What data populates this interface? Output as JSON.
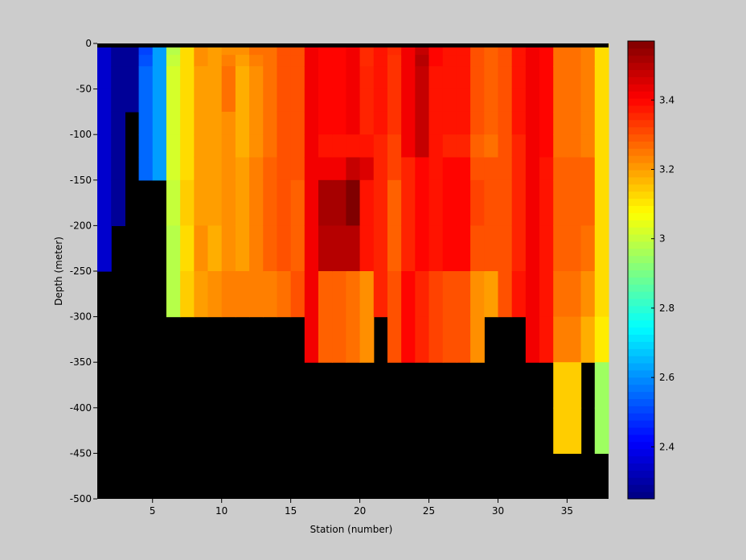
{
  "chart_data": {
    "type": "heatmap",
    "title": "",
    "xlabel": "Station (number)",
    "ylabel": "Depth (meter)",
    "xlim": [
      1,
      38
    ],
    "ylim": [
      -500,
      0
    ],
    "x_ticks": [
      5,
      10,
      15,
      20,
      25,
      30,
      35
    ],
    "y_ticks": [
      0,
      -50,
      -100,
      -150,
      -200,
      -250,
      -300,
      -350,
      -400,
      -450,
      -500
    ],
    "colorbar": {
      "range": [
        2.25,
        3.57
      ],
      "ticks": [
        2.4,
        2.6,
        2.8,
        3,
        3.2,
        3.4
      ],
      "tick_labels": [
        "2.4",
        "2.6",
        "2.8",
        "3",
        "3.2",
        "3.4"
      ],
      "colormap": "jet"
    },
    "missing_color": "#000000",
    "depth_bins": [
      0,
      -12.5,
      -25,
      -50,
      -75,
      -100,
      -125,
      -150,
      -200,
      -250,
      -300,
      -350,
      -400,
      -450,
      -500
    ],
    "stations": [
      {
        "station": 1,
        "max_depth": -250,
        "values": [
          2.35,
          2.35,
          2.35,
          2.35,
          2.35,
          2.35,
          2.35,
          2.35,
          2.35
        ]
      },
      {
        "station": 2,
        "max_depth": -200,
        "values": [
          2.28,
          2.28,
          2.28,
          2.28,
          2.28,
          2.28,
          2.28,
          2.28
        ]
      },
      {
        "station": 3,
        "max_depth": -75,
        "values": [
          2.28,
          2.28,
          2.28,
          2.28
        ]
      },
      {
        "station": 4,
        "max_depth": -150,
        "values": [
          2.5,
          2.52,
          2.55,
          2.55,
          2.55,
          2.55,
          2.55
        ]
      },
      {
        "station": 5,
        "max_depth": -150,
        "values": [
          2.62,
          2.62,
          2.62,
          2.62,
          2.62,
          2.62,
          2.62
        ]
      },
      {
        "station": 6,
        "max_depth": -250,
        "values": [
          2.98,
          3.0,
          3.02,
          3.02,
          3.02,
          3.02,
          3.02,
          3.0,
          2.98,
          2.98
        ]
      },
      {
        "station": 7,
        "max_depth": -250,
        "values": [
          3.12,
          3.12,
          3.12,
          3.12,
          3.12,
          3.12,
          3.12,
          3.14,
          3.12,
          3.14
        ]
      },
      {
        "station": 8,
        "max_depth": -250,
        "values": [
          3.22,
          3.22,
          3.2,
          3.2,
          3.2,
          3.2,
          3.2,
          3.2,
          3.22,
          3.2
        ]
      },
      {
        "station": 9,
        "max_depth": -250,
        "values": [
          3.2,
          3.2,
          3.2,
          3.2,
          3.2,
          3.2,
          3.2,
          3.2,
          3.18,
          3.22
        ]
      },
      {
        "station": 10,
        "max_depth": -250,
        "values": [
          3.22,
          3.24,
          3.26,
          3.26,
          3.22,
          3.22,
          3.22,
          3.22,
          3.22,
          3.24
        ]
      },
      {
        "station": 11,
        "max_depth": -250,
        "values": [
          3.22,
          3.2,
          3.18,
          3.18,
          3.18,
          3.18,
          3.2,
          3.2,
          3.2,
          3.24
        ]
      },
      {
        "station": 12,
        "max_depth": -250,
        "values": [
          3.26,
          3.24,
          3.22,
          3.22,
          3.22,
          3.22,
          3.24,
          3.24,
          3.24,
          3.24
        ]
      },
      {
        "station": 13,
        "max_depth": -250,
        "values": [
          3.26,
          3.26,
          3.26,
          3.26,
          3.26,
          3.26,
          3.28,
          3.28,
          3.28,
          3.24
        ]
      },
      {
        "station": 14,
        "max_depth": -250,
        "values": [
          3.3,
          3.3,
          3.3,
          3.3,
          3.3,
          3.3,
          3.3,
          3.3,
          3.3,
          3.26
        ]
      },
      {
        "station": 15,
        "max_depth": -250,
        "values": [
          3.3,
          3.3,
          3.3,
          3.3,
          3.3,
          3.3,
          3.3,
          3.28,
          3.28,
          3.3
        ]
      },
      {
        "station": 16,
        "max_depth": -300,
        "values": [
          3.42,
          3.42,
          3.42,
          3.42,
          3.42,
          3.42,
          3.42,
          3.42,
          3.42,
          3.42,
          3.42
        ]
      },
      {
        "station": 17,
        "max_depth": -300,
        "values": [
          3.4,
          3.4,
          3.4,
          3.4,
          3.4,
          3.38,
          3.42,
          3.52,
          3.5,
          3.28,
          3.28
        ]
      },
      {
        "station": 18,
        "max_depth": -300,
        "values": [
          3.4,
          3.4,
          3.4,
          3.4,
          3.4,
          3.38,
          3.42,
          3.52,
          3.5,
          3.28,
          3.28
        ]
      },
      {
        "station": 19,
        "max_depth": -300,
        "values": [
          3.42,
          3.42,
          3.42,
          3.42,
          3.42,
          3.38,
          3.48,
          3.57,
          3.5,
          3.26,
          3.26
        ]
      },
      {
        "station": 20,
        "max_depth": -300,
        "values": [
          3.35,
          3.35,
          3.36,
          3.36,
          3.36,
          3.38,
          3.45,
          3.38,
          3.38,
          3.22,
          3.22
        ]
      },
      {
        "station": 21,
        "max_depth": -250,
        "values": [
          3.38,
          3.38,
          3.38,
          3.38,
          3.38,
          3.36,
          3.36,
          3.36,
          3.36,
          3.36
        ]
      },
      {
        "station": 22,
        "max_depth": -300,
        "values": [
          3.35,
          3.34,
          3.34,
          3.34,
          3.34,
          3.32,
          3.32,
          3.28,
          3.28,
          3.3,
          3.3
        ]
      },
      {
        "station": 23,
        "max_depth": -300,
        "values": [
          3.42,
          3.42,
          3.42,
          3.42,
          3.42,
          3.42,
          3.36,
          3.36,
          3.36,
          3.4,
          3.4
        ]
      },
      {
        "station": 24,
        "max_depth": -300,
        "values": [
          3.48,
          3.5,
          3.48,
          3.48,
          3.48,
          3.48,
          3.4,
          3.4,
          3.4,
          3.36,
          3.36
        ]
      },
      {
        "station": 25,
        "max_depth": -300,
        "values": [
          3.4,
          3.4,
          3.38,
          3.38,
          3.38,
          3.38,
          3.38,
          3.38,
          3.38,
          3.32,
          3.32
        ]
      },
      {
        "station": 26,
        "max_depth": -300,
        "values": [
          3.38,
          3.38,
          3.38,
          3.38,
          3.38,
          3.36,
          3.4,
          3.4,
          3.4,
          3.3,
          3.3
        ]
      },
      {
        "station": 27,
        "max_depth": -300,
        "values": [
          3.38,
          3.38,
          3.38,
          3.38,
          3.38,
          3.36,
          3.4,
          3.4,
          3.4,
          3.3,
          3.3
        ]
      },
      {
        "station": 28,
        "max_depth": -300,
        "values": [
          3.3,
          3.3,
          3.3,
          3.3,
          3.3,
          3.28,
          3.3,
          3.32,
          3.3,
          3.22,
          3.22
        ]
      },
      {
        "station": 29,
        "max_depth": -250,
        "values": [
          3.28,
          3.28,
          3.28,
          3.28,
          3.28,
          3.26,
          3.3,
          3.3,
          3.3,
          3.2
        ]
      },
      {
        "station": 30,
        "max_depth": -250,
        "values": [
          3.3,
          3.3,
          3.3,
          3.3,
          3.3,
          3.3,
          3.3,
          3.3,
          3.3,
          3.3
        ]
      },
      {
        "station": 31,
        "max_depth": -250,
        "values": [
          3.38,
          3.38,
          3.38,
          3.38,
          3.38,
          3.36,
          3.36,
          3.36,
          3.36,
          3.38
        ]
      },
      {
        "station": 32,
        "max_depth": -300,
        "values": [
          3.42,
          3.42,
          3.42,
          3.42,
          3.42,
          3.42,
          3.42,
          3.42,
          3.42,
          3.42,
          3.42
        ]
      },
      {
        "station": 33,
        "max_depth": -300,
        "values": [
          3.4,
          3.4,
          3.4,
          3.4,
          3.4,
          3.4,
          3.38,
          3.38,
          3.38,
          3.38,
          3.38
        ]
      },
      {
        "station": 34,
        "max_depth": -400,
        "values": [
          3.26,
          3.26,
          3.26,
          3.26,
          3.26,
          3.26,
          3.28,
          3.28,
          3.28,
          3.26,
          3.24,
          3.14,
          3.14
        ]
      },
      {
        "station": 35,
        "max_depth": -400,
        "values": [
          3.26,
          3.26,
          3.26,
          3.26,
          3.26,
          3.26,
          3.28,
          3.28,
          3.28,
          3.26,
          3.24,
          3.14,
          3.14
        ]
      },
      {
        "station": 36,
        "max_depth": -300,
        "values": [
          3.24,
          3.24,
          3.24,
          3.24,
          3.24,
          3.24,
          3.28,
          3.28,
          3.26,
          3.22,
          3.18
        ]
      },
      {
        "station": 37,
        "max_depth": -400,
        "values": [
          3.12,
          3.12,
          3.12,
          3.12,
          3.12,
          3.12,
          3.12,
          3.12,
          3.12,
          3.12,
          3.1,
          2.95,
          2.95
        ]
      }
    ]
  }
}
